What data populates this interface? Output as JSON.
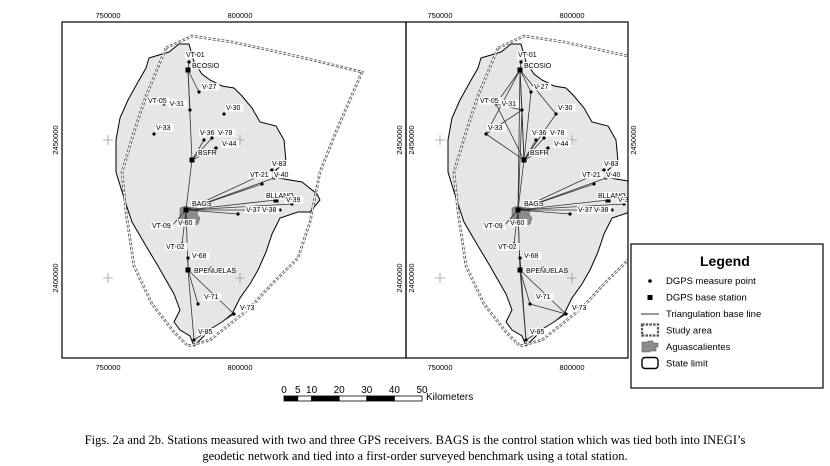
{
  "maps": [
    {
      "id": "a",
      "x_ticks": [
        "750000",
        "800000"
      ],
      "y_ticks": [
        "2450000",
        "2400000"
      ]
    },
    {
      "id": "b",
      "x_ticks": [
        "750000",
        "800000"
      ],
      "y_ticks": [
        "2450000",
        "2400000"
      ]
    }
  ],
  "stations": [
    {
      "name": "VT-01",
      "type": "measure"
    },
    {
      "name": "BCOSIO",
      "type": "base"
    },
    {
      "name": "V-27",
      "type": "measure"
    },
    {
      "name": "VT-05",
      "type": "measure"
    },
    {
      "name": "V-31",
      "type": "measure"
    },
    {
      "name": "V-30",
      "type": "measure"
    },
    {
      "name": "V-33",
      "type": "measure"
    },
    {
      "name": "V-36",
      "type": "measure"
    },
    {
      "name": "V-78",
      "type": "measure"
    },
    {
      "name": "V-44",
      "type": "measure"
    },
    {
      "name": "BSFR",
      "type": "base"
    },
    {
      "name": "V-83",
      "type": "measure"
    },
    {
      "name": "VT-21",
      "type": "measure"
    },
    {
      "name": "V-40",
      "type": "measure"
    },
    {
      "name": "BLLANO",
      "type": "base"
    },
    {
      "name": "V-39",
      "type": "measure"
    },
    {
      "name": "BAGS",
      "type": "base"
    },
    {
      "name": "V-37",
      "type": "measure"
    },
    {
      "name": "V-38",
      "type": "measure"
    },
    {
      "name": "VT-09",
      "type": "measure"
    },
    {
      "name": "V-60",
      "type": "measure"
    },
    {
      "name": "VT-02",
      "type": "measure"
    },
    {
      "name": "V-68",
      "type": "measure"
    },
    {
      "name": "BPEÑUELAS",
      "type": "base"
    },
    {
      "name": "V-71",
      "type": "measure"
    },
    {
      "name": "V-73",
      "type": "measure"
    },
    {
      "name": "V-85",
      "type": "measure"
    }
  ],
  "legend": {
    "title": "Legend",
    "items": [
      {
        "label": "DGPS measure point",
        "symbol": "dot"
      },
      {
        "label": "DGPS base station",
        "symbol": "square"
      },
      {
        "label": "Triangulation base line",
        "symbol": "line"
      },
      {
        "label": "Study area",
        "symbol": "dashed-box"
      },
      {
        "label": "Aguascalientes",
        "symbol": "urban-patch"
      },
      {
        "label": "State limit",
        "symbol": "rounded-box"
      }
    ]
  },
  "scale_bar": {
    "ticks": [
      "0",
      "5",
      "10",
      "20",
      "30",
      "40",
      "50"
    ],
    "unit": "Kilometers"
  },
  "caption": {
    "line1": "Figs. 2a and 2b. Stations measured with two and three GPS receivers. BAGS is the control station which was tied both into INEGI’s",
    "line2": "geodetic network and tied into a first-order surveyed benchmark using a total station."
  },
  "colors": {
    "state_fill": "#e6e6e6",
    "frame": "#000000",
    "urban": "#8c8c8c",
    "baseline": "#333333"
  }
}
